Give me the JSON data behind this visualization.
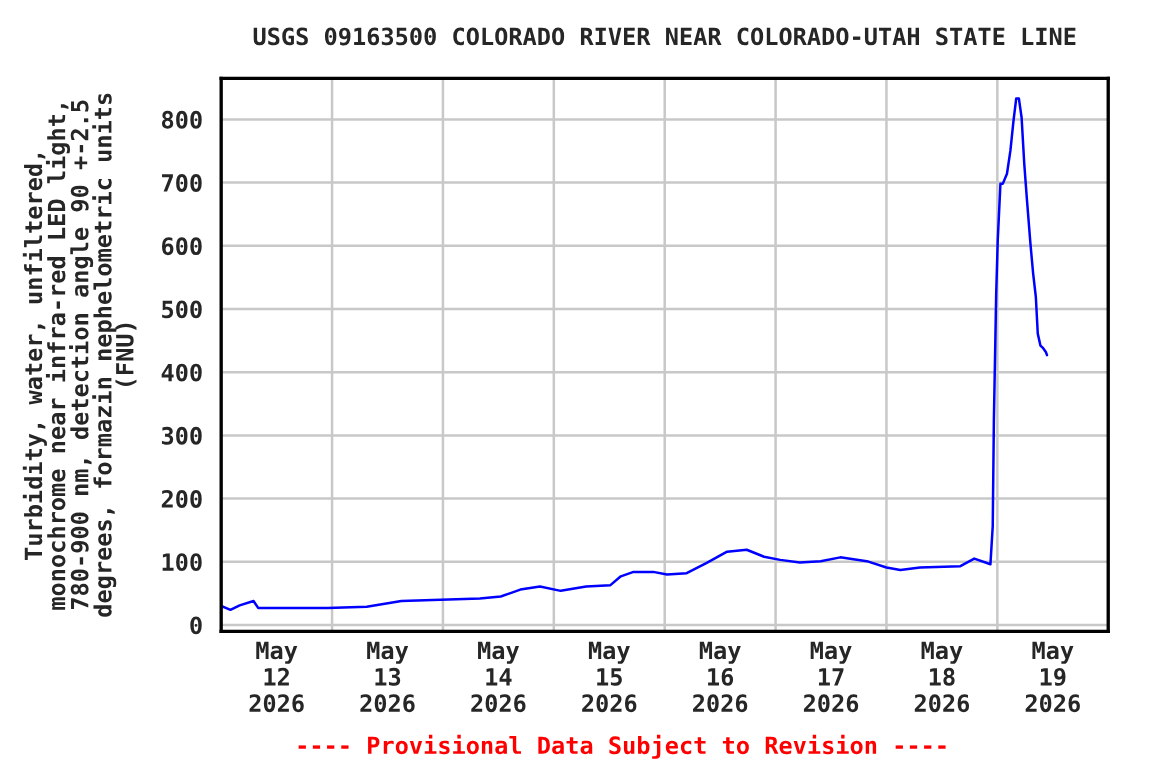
{
  "chart_data": {
    "type": "line",
    "title": "USGS 09163500 COLORADO RIVER NEAR COLORADO-UTAH STATE LINE",
    "ylabel": "Turbidity, water, unfiltered,\nmonochrome near infra-red LED light,\n780-900 nm, detection angle 90 +-2.5\ndegrees, formazin nephelometric units\n(FNU)",
    "annotations": [
      "---- Provisional Data Subject to Revision ----"
    ],
    "xlim": [
      "2026-05-12T00:00",
      "2026-05-20T00:00"
    ],
    "xticks": [
      {
        "value": "2026-05-12T12:00",
        "label": "May\n12\n2026"
      },
      {
        "value": "2026-05-13T12:00",
        "label": "May\n13\n2026"
      },
      {
        "value": "2026-05-14T12:00",
        "label": "May\n14\n2026"
      },
      {
        "value": "2026-05-15T12:00",
        "label": "May\n15\n2026"
      },
      {
        "value": "2026-05-16T12:00",
        "label": "May\n16\n2026"
      },
      {
        "value": "2026-05-17T12:00",
        "label": "May\n17\n2026"
      },
      {
        "value": "2026-05-18T12:00",
        "label": "May\n18\n2026"
      },
      {
        "value": "2026-05-19T12:00",
        "label": "May\n19\n2026"
      },
      {
        "value": "2026-05-13T00:00",
        "label": null
      },
      {
        "value": "2026-05-14T00:00",
        "label": null
      },
      {
        "value": "2026-05-15T00:00",
        "label": null
      },
      {
        "value": "2026-05-16T00:00",
        "label": null
      },
      {
        "value": "2026-05-17T00:00",
        "label": null
      },
      {
        "value": "2026-05-18T00:00",
        "label": null
      },
      {
        "value": "2026-05-19T00:00",
        "label": null
      }
    ],
    "ylim": [
      -10,
      865
    ],
    "yticks": [
      0,
      100,
      200,
      300,
      400,
      500,
      600,
      700,
      800
    ],
    "grid": true,
    "legend": false,
    "series": [
      {
        "color": "#0000ff",
        "x": [
          "2026-05-12T00:00",
          "2026-05-12T02:00",
          "2026-05-12T04:00",
          "2026-05-12T07:00",
          "2026-05-12T08:00",
          "2026-05-12T23:00",
          "2026-05-13T07:30",
          "2026-05-13T15:00",
          "2026-05-13T23:30",
          "2026-05-14T08:00",
          "2026-05-14T12:30",
          "2026-05-14T16:45",
          "2026-05-14T21:00",
          "2026-05-15T01:30",
          "2026-05-15T07:00",
          "2026-05-15T12:15",
          "2026-05-15T14:30",
          "2026-05-15T17:15",
          "2026-05-15T21:30",
          "2026-05-16T00:30",
          "2026-05-16T04:45",
          "2026-05-16T09:00",
          "2026-05-16T13:30",
          "2026-05-16T17:45",
          "2026-05-16T21:30",
          "2026-05-17T01:00",
          "2026-05-17T05:15",
          "2026-05-17T09:45",
          "2026-05-17T14:00",
          "2026-05-17T19:45",
          "2026-05-18T00:00",
          "2026-05-18T03:00",
          "2026-05-18T07:15",
          "2026-05-18T16:00",
          "2026-05-18T19:00",
          "2026-05-18T21:45",
          "2026-05-18T22:30",
          "2026-05-18T23:00",
          "2026-05-18T23:15",
          "2026-05-18T23:45",
          "2026-05-19T00:05",
          "2026-05-19T00:40",
          "2026-05-19T01:10",
          "2026-05-19T02:05",
          "2026-05-19T02:50",
          "2026-05-19T03:30",
          "2026-05-19T04:05",
          "2026-05-19T04:40",
          "2026-05-19T05:15",
          "2026-05-19T05:50",
          "2026-05-19T06:25",
          "2026-05-19T07:10",
          "2026-05-19T07:45",
          "2026-05-19T08:20",
          "2026-05-19T08:45",
          "2026-05-19T09:20",
          "2026-05-19T09:55",
          "2026-05-19T10:30",
          "2026-05-19T10:45"
        ],
        "values": [
          30,
          24,
          31,
          38,
          27,
          27,
          29,
          38,
          40,
          42,
          45,
          56,
          61,
          54,
          61,
          63,
          77,
          84,
          84,
          80,
          82,
          98,
          116,
          119,
          108,
          103,
          99,
          101,
          107,
          101,
          91,
          87,
          91,
          93,
          105,
          98,
          96,
          156,
          324,
          524,
          608,
          698,
          698,
          714,
          751,
          798,
          833,
          833,
          803,
          729,
          672,
          603,
          556,
          519,
          461,
          442,
          438,
          432,
          427
        ]
      }
    ]
  }
}
